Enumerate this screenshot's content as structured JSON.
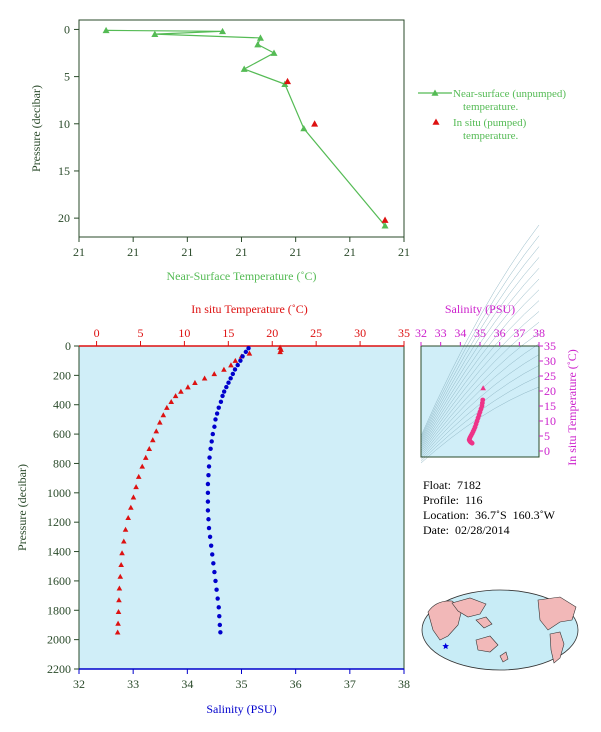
{
  "chart_data": [
    {
      "type": "line",
      "id": "near-surface",
      "xlabel": "Near-Surface Temperature (˚C)",
      "ylabel": "Pressure (decibar)",
      "xlim": [
        0,
        6
      ],
      "ylim": [
        22,
        -1
      ],
      "x_tick_labels": [
        "21",
        "21",
        "21",
        "21",
        "21",
        "21",
        "21"
      ],
      "y_ticks": [
        0,
        5,
        10,
        15,
        20
      ],
      "series": [
        {
          "name": "Near-surface (unpumped) temperature.",
          "color": "#55bb55",
          "marker": "triangle",
          "points": [
            {
              "x": 0.5,
              "y": 0.1
            },
            {
              "x": 2.65,
              "y": 0.2
            },
            {
              "x": 1.4,
              "y": 0.5
            },
            {
              "x": 3.35,
              "y": 0.9
            },
            {
              "x": 3.3,
              "y": 1.6
            },
            {
              "x": 3.6,
              "y": 2.5
            },
            {
              "x": 3.05,
              "y": 4.2
            },
            {
              "x": 3.8,
              "y": 5.8
            },
            {
              "x": 4.15,
              "y": 10.5
            },
            {
              "x": 5.65,
              "y": 20.8
            }
          ]
        },
        {
          "name": "In situ (pumped) temperature.",
          "color": "#dd1111",
          "marker": "triangle",
          "points": [
            {
              "x": 3.85,
              "y": 5.5
            },
            {
              "x": 4.35,
              "y": 10.0
            },
            {
              "x": 5.65,
              "y": 20.2
            }
          ]
        }
      ]
    },
    {
      "type": "scatter",
      "id": "profile",
      "ylabel": "Pressure (decibar)",
      "ylim": [
        2200,
        0
      ],
      "y_ticks": [
        0,
        200,
        400,
        600,
        800,
        1000,
        1200,
        1400,
        1600,
        1800,
        2000,
        2200
      ],
      "top_axis": {
        "label": "In situ Temperature (˚C)",
        "range": [
          -2,
          35
        ],
        "ticks": [
          0,
          5,
          10,
          15,
          20,
          25,
          30,
          35
        ],
        "color": "#dd1111"
      },
      "bottom_axis": {
        "label": "Salinity (PSU)",
        "range": [
          32,
          38
        ],
        "ticks": [
          32,
          33,
          34,
          35,
          36,
          37,
          38
        ],
        "color": "#0000cc"
      },
      "series": [
        {
          "name": "In situ Temperature",
          "color": "#dd1111",
          "marker": "triangle",
          "points": [
            [
              20.9,
              10
            ],
            [
              21.0,
              25
            ],
            [
              20.9,
              40
            ],
            [
              17.4,
              50
            ],
            [
              16.5,
              70
            ],
            [
              15.8,
              100
            ],
            [
              15.3,
              130
            ],
            [
              14.5,
              160
            ],
            [
              13.4,
              190
            ],
            [
              12.3,
              220
            ],
            [
              11.2,
              250
            ],
            [
              10.4,
              280
            ],
            [
              9.6,
              310
            ],
            [
              9.0,
              340
            ],
            [
              8.5,
              380
            ],
            [
              8.0,
              420
            ],
            [
              7.6,
              470
            ],
            [
              7.2,
              520
            ],
            [
              6.8,
              580
            ],
            [
              6.4,
              640
            ],
            [
              6.0,
              700
            ],
            [
              5.6,
              760
            ],
            [
              5.2,
              820
            ],
            [
              4.8,
              890
            ],
            [
              4.5,
              960
            ],
            [
              4.2,
              1030
            ],
            [
              3.9,
              1100
            ],
            [
              3.6,
              1170
            ],
            [
              3.3,
              1250
            ],
            [
              3.1,
              1330
            ],
            [
              2.9,
              1410
            ],
            [
              2.8,
              1490
            ],
            [
              2.7,
              1570
            ],
            [
              2.6,
              1650
            ],
            [
              2.55,
              1730
            ],
            [
              2.5,
              1810
            ],
            [
              2.45,
              1890
            ],
            [
              2.4,
              1950
            ]
          ]
        },
        {
          "name": "Salinity",
          "color": "#0000cc",
          "marker": "circle",
          "points": [
            [
              35.13,
              15
            ],
            [
              35.08,
              40
            ],
            [
              35.02,
              70
            ],
            [
              34.98,
              100
            ],
            [
              34.93,
              130
            ],
            [
              34.88,
              160
            ],
            [
              34.84,
              190
            ],
            [
              34.8,
              220
            ],
            [
              34.76,
              250
            ],
            [
              34.72,
              280
            ],
            [
              34.68,
              310
            ],
            [
              34.65,
              340
            ],
            [
              34.62,
              380
            ],
            [
              34.58,
              420
            ],
            [
              34.55,
              460
            ],
            [
              34.52,
              500
            ],
            [
              34.5,
              550
            ],
            [
              34.47,
              600
            ],
            [
              34.45,
              650
            ],
            [
              34.43,
              700
            ],
            [
              34.41,
              760
            ],
            [
              34.4,
              820
            ],
            [
              34.39,
              880
            ],
            [
              34.38,
              940
            ],
            [
              34.38,
              1000
            ],
            [
              34.38,
              1060
            ],
            [
              34.38,
              1120
            ],
            [
              34.39,
              1180
            ],
            [
              34.4,
              1240
            ],
            [
              34.42,
              1300
            ],
            [
              34.44,
              1360
            ],
            [
              34.46,
              1420
            ],
            [
              34.48,
              1480
            ],
            [
              34.5,
              1540
            ],
            [
              34.52,
              1600
            ],
            [
              34.54,
              1660
            ],
            [
              34.56,
              1720
            ],
            [
              34.58,
              1780
            ],
            [
              34.59,
              1840
            ],
            [
              34.6,
              1900
            ],
            [
              34.61,
              1950
            ]
          ]
        }
      ]
    },
    {
      "type": "scatter",
      "id": "ts-diagram",
      "top_axis": {
        "label": "Salinity (PSU)",
        "range": [
          32,
          38
        ],
        "ticks": [
          32,
          33,
          34,
          35,
          36,
          37,
          38
        ],
        "color": "#cc22cc"
      },
      "right_axis": {
        "label": "In situ Temperature (˚C)",
        "range": [
          -2,
          35
        ],
        "ticks": [
          0,
          5,
          10,
          15,
          20,
          25,
          30,
          35
        ],
        "color": "#cc22cc"
      },
      "series": [
        {
          "name": "T-S profile",
          "color": "#ee3388",
          "points": [
            [
              35.16,
              21
            ],
            [
              35.14,
              17
            ],
            [
              35.12,
              16
            ],
            [
              35.1,
              15
            ],
            [
              35.05,
              14
            ],
            [
              35.0,
              13
            ],
            [
              34.95,
              12
            ],
            [
              34.9,
              11
            ],
            [
              34.85,
              10
            ],
            [
              34.8,
              9
            ],
            [
              34.75,
              8
            ],
            [
              34.7,
              7.2
            ],
            [
              34.65,
              6.5
            ],
            [
              34.6,
              5.8
            ],
            [
              34.55,
              5.2
            ],
            [
              34.5,
              4.6
            ],
            [
              34.47,
              4.1
            ],
            [
              34.45,
              3.7
            ],
            [
              34.48,
              3.3
            ],
            [
              34.52,
              3.0
            ],
            [
              34.56,
              2.8
            ],
            [
              34.6,
              2.6
            ]
          ]
        }
      ]
    }
  ],
  "info": {
    "float_line": "Float:  7182",
    "profile_line": "Profile:  116",
    "location_line": "Location:  36.7˚S  160.3˚W",
    "date_line": "Date:  02/28/2014"
  },
  "map": {
    "float_location": {
      "lat": -36.7,
      "lon": -160.3
    },
    "marker_color": "#0000dd",
    "ocean_color": "#c8ecf6",
    "land_color": "#f2b8b8"
  },
  "colors": {
    "panel_bg": "#d0eef8",
    "axis_dark": "#2a4a2a",
    "green": "#55bb55",
    "red": "#dd1111",
    "blue": "#0000cc",
    "magenta": "#cc22cc",
    "pink": "#ee3388"
  }
}
